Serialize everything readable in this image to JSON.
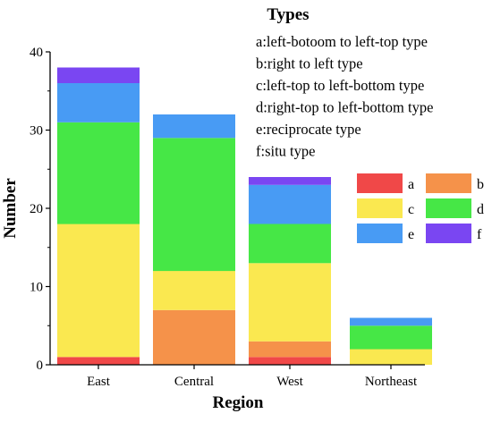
{
  "chart_data": {
    "type": "bar",
    "stacked": true,
    "categories": [
      "East",
      "Central",
      "West",
      "Northeast"
    ],
    "series": [
      {
        "name": "a",
        "color": "#f04848",
        "values": [
          1,
          0,
          1,
          0
        ]
      },
      {
        "name": "b",
        "color": "#f5924a",
        "values": [
          0,
          7,
          2,
          0
        ]
      },
      {
        "name": "c",
        "color": "#fae850",
        "values": [
          17,
          5,
          10,
          2
        ]
      },
      {
        "name": "d",
        "color": "#46e746",
        "values": [
          13,
          17,
          5,
          3
        ]
      },
      {
        "name": "e",
        "color": "#489bf4",
        "values": [
          5,
          3,
          5,
          1
        ]
      },
      {
        "name": "f",
        "color": "#7a46f2",
        "values": [
          2,
          0,
          1,
          0
        ]
      }
    ],
    "xlabel": "Region",
    "ylabel": "Number",
    "ylim": [
      0,
      40
    ],
    "yticks": [
      0,
      10,
      20,
      30,
      40
    ],
    "grid": false,
    "legend": {
      "title": "Types",
      "descriptions": [
        "a:left-botoom to left-top type",
        "b:right to left type",
        "c:left-top to left-bottom type",
        "d:right-top to left-bottom type",
        "e:reciprocate type",
        "f:situ type"
      ],
      "placement": "top-right"
    }
  }
}
